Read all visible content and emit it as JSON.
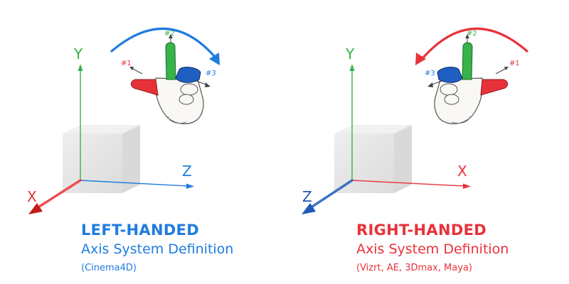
{
  "colors": {
    "blue": "#1f7ce0",
    "red": "#e8323a",
    "green": "#36b34a",
    "dark_blue": "#1e59b5",
    "dark_red": "#c41d1d",
    "cube": "#e2e2e2"
  },
  "icons": {
    "left_hand": "left-hand-icon",
    "right_hand": "right-hand-icon",
    "cube": "cube-shape"
  },
  "left": {
    "axis_y": "Y",
    "axis_z": "Z",
    "axis_x": "X",
    "finger_1": "#1",
    "finger_2": "#2",
    "finger_3": "#3",
    "title": "LEFT-HANDED",
    "subtitle": "Axis System Definition",
    "note": "(Cinema4D)"
  },
  "right": {
    "axis_y": "Y",
    "axis_x": "X",
    "axis_z": "Z",
    "finger_1": "#1",
    "finger_2": "#2",
    "finger_3": "#3",
    "title": "RIGHT-HANDED",
    "subtitle": "Axis System Definition",
    "note": "(Vizrt, AE, 3Dmax, Maya)"
  }
}
